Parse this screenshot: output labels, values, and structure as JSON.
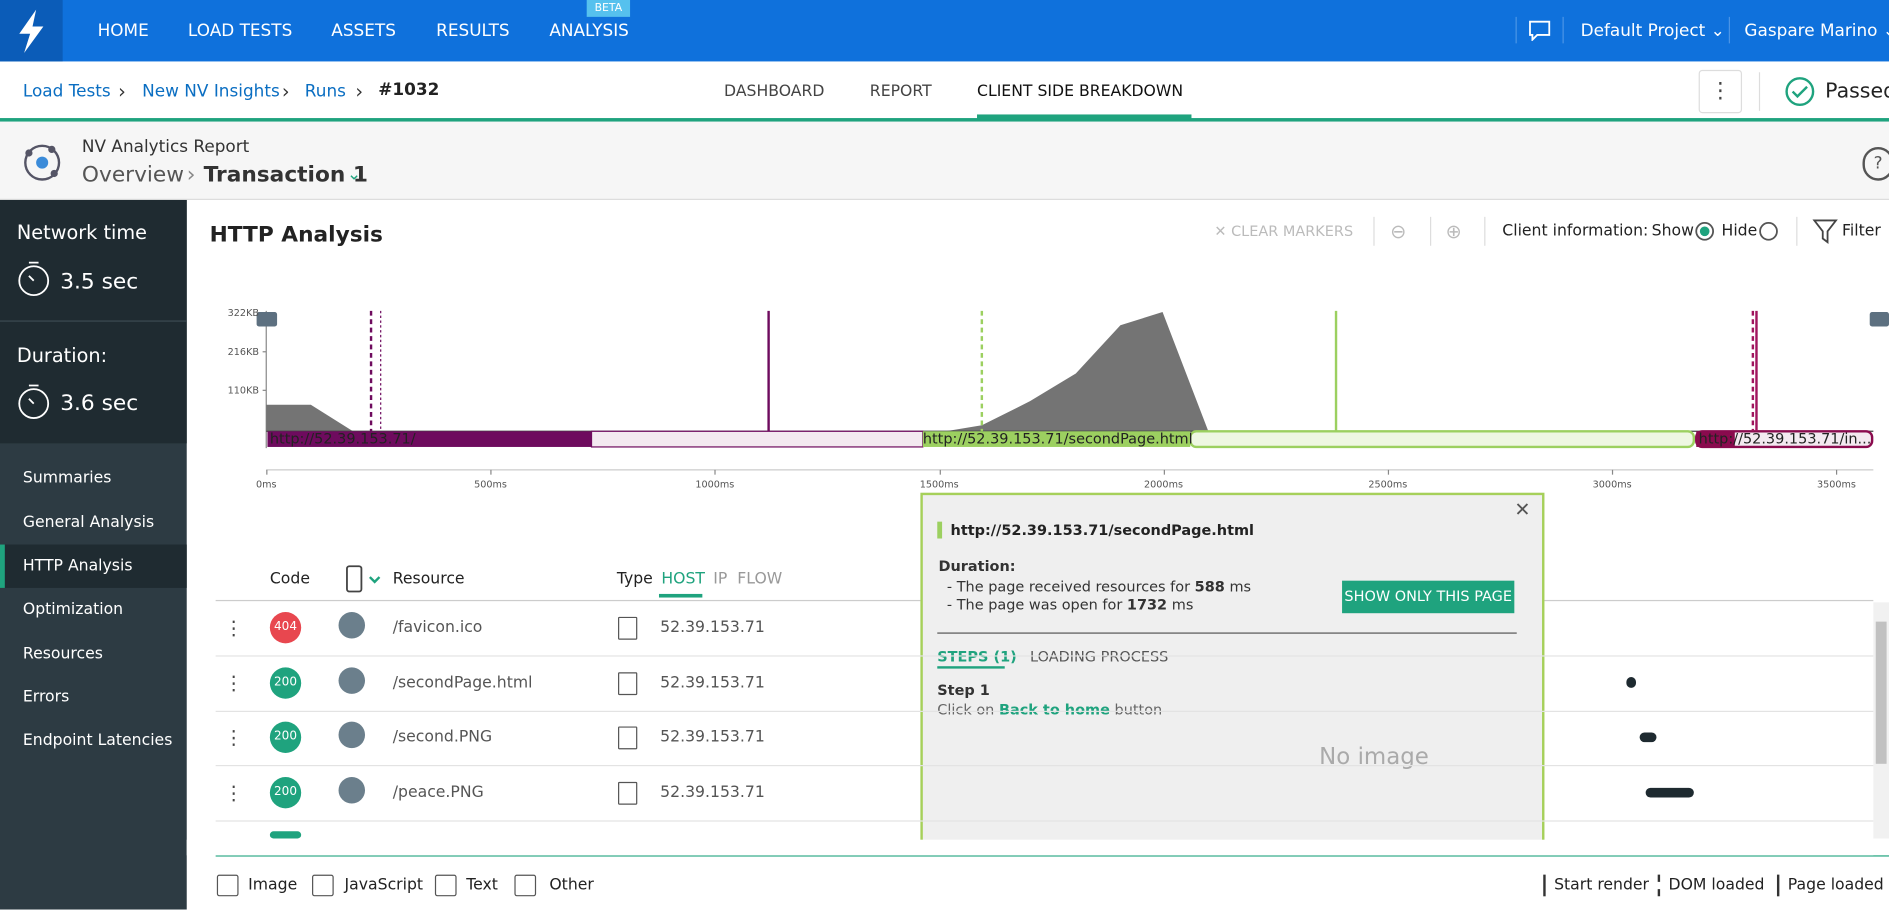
{
  "nav": {
    "items": [
      "HOME",
      "LOAD TESTS",
      "ASSETS",
      "RESULTS",
      "ANALYSIS"
    ],
    "beta": "BETA",
    "project": "Default Project",
    "user": "Gaspare Marino"
  },
  "breadcrumb": [
    "Load Tests",
    "New NV Insights",
    "Runs",
    "#1032"
  ],
  "tabs": [
    "DASHBOARD",
    "REPORT",
    "CLIENT SIDE BREAKDOWN"
  ],
  "status": "Passed",
  "report": {
    "label": "NV Analytics Report",
    "overview": "Overview",
    "transaction": "Transaction 1"
  },
  "sidebar": {
    "metrics": [
      {
        "label": "Network time",
        "value": "3.5 sec"
      },
      {
        "label": "Duration:",
        "value": "3.6 sec"
      }
    ],
    "menu": [
      "Summaries",
      "General Analysis",
      "HTTP Analysis",
      "Optimization",
      "Resources",
      "Errors",
      "Endpoint Latencies"
    ]
  },
  "panel": {
    "title": "HTTP Analysis",
    "clear": "CLEAR MARKERS",
    "client_info": "Client information:",
    "show": "Show",
    "hide": "Hide",
    "filter": "Filter"
  },
  "timeline": {
    "yticks": [
      "322KB",
      "216KB",
      "110KB"
    ],
    "xticks": [
      "0ms",
      "500ms",
      "1000ms",
      "1500ms",
      "2000ms",
      "2500ms",
      "3000ms",
      "3500ms"
    ],
    "pages": [
      "http://52.39.153.71/",
      "http://52.39.153.71/secondPage.html",
      "http://52.39.153.71/in..."
    ]
  },
  "table": {
    "headers": [
      "Code",
      "Resource",
      "Type",
      "HOST",
      "IP",
      "FLOW"
    ],
    "rows": [
      [
        "404",
        "/favicon.ico",
        "52.39.153.71"
      ],
      [
        "200",
        "/secondPage.html",
        "52.39.153.71"
      ],
      [
        "200",
        "/second.PNG",
        "52.39.153.71"
      ],
      [
        "200",
        "/peace.PNG",
        "52.39.153.71"
      ]
    ]
  },
  "popup": {
    "url": "http://52.39.153.71/secondPage.html",
    "duration": "Duration:",
    "lines": [
      {
        "text": "- The page received resources for",
        "value": "588",
        "unit": "ms"
      },
      {
        "text": "- The page was open for",
        "value": "1732",
        "unit": "ms"
      }
    ],
    "button": "SHOW ONLY THIS PAGE",
    "tabs": [
      "STEPS (1)",
      "LOADING PROCESS"
    ],
    "step": "Step 1",
    "click": "Click on",
    "link": "Back to home",
    "after": "button",
    "noimage": "No image"
  },
  "legend": [
    "Image",
    "JavaScript",
    "Text",
    "Other"
  ],
  "markers": [
    "Start render",
    "DOM loaded",
    "Page loaded"
  ]
}
